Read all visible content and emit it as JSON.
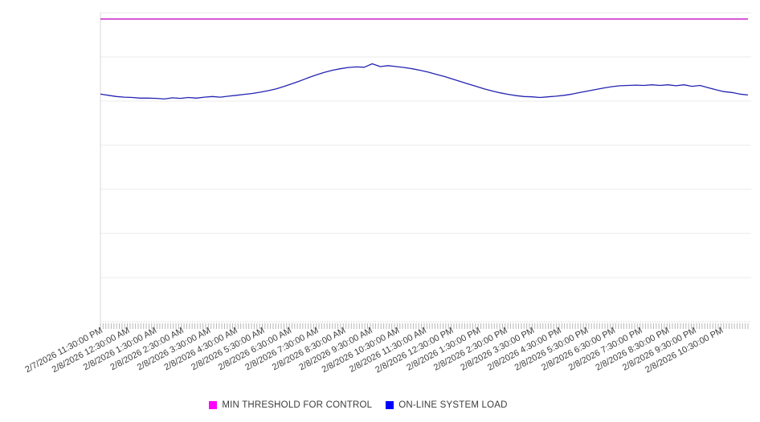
{
  "chart_data": {
    "type": "line",
    "title": "",
    "xlabel": "",
    "ylabel": "",
    "ylim": [
      0,
      100
    ],
    "y_divisions": 7,
    "y_axis_labels_visible": false,
    "grid": "horizontal",
    "legend_position": "bottom",
    "x_minor_tick_count": 240,
    "x_labels": [
      "2/7/2026 11:30:00 PM",
      "2/8/2026 12:30:00 AM",
      "2/8/2026 1:30:00 AM",
      "2/8/2026 2:30:00 AM",
      "2/8/2026 3:30:00 AM",
      "2/8/2026 4:30:00 AM",
      "2/8/2026 5:30:00 AM",
      "2/8/2026 6:30:00 AM",
      "2/8/2026 7:30:00 AM",
      "2/8/2026 8:30:00 AM",
      "2/8/2026 9:30:00 AM",
      "2/8/2026 10:30:00 AM",
      "2/8/2026 11:30:00 AM",
      "2/8/2026 12:30:00 PM",
      "2/8/2026 1:30:00 PM",
      "2/8/2026 2:30:00 PM",
      "2/8/2026 3:30:00 PM",
      "2/8/2026 4:30:00 PM",
      "2/8/2026 5:30:00 PM",
      "2/8/2026 6:30:00 PM",
      "2/8/2026 7:30:00 PM",
      "2/8/2026 8:30:00 PM",
      "2/8/2026 9:30:00 PM",
      "2/8/2026 10:30:00 PM"
    ],
    "series": [
      {
        "name": "MIN THRESHOLD FOR CONTROL",
        "type": "constant-threshold",
        "value": 98,
        "legend_color": "#FF00FF",
        "line_color": "#C929C9"
      },
      {
        "name": "ON-LINE SYSTEM LOAD",
        "type": "line",
        "legend_color": "#0000FF",
        "line_color": "#2323B2",
        "values": [
          73.7,
          73.3,
          72.9,
          72.7,
          72.6,
          72.4,
          72.4,
          72.3,
          72.1,
          72.5,
          72.3,
          72.6,
          72.4,
          72.7,
          72.9,
          72.7,
          73.0,
          73.3,
          73.6,
          73.9,
          74.3,
          74.8,
          75.4,
          76.2,
          77.1,
          78.0,
          79.0,
          79.9,
          80.7,
          81.4,
          81.9,
          82.3,
          82.5,
          82.4,
          83.5,
          82.6,
          82.9,
          82.6,
          82.3,
          81.9,
          81.4,
          80.8,
          80.1,
          79.4,
          78.6,
          77.8,
          77.0,
          76.2,
          75.4,
          74.7,
          74.1,
          73.6,
          73.2,
          72.9,
          72.8,
          72.6,
          72.8,
          73.0,
          73.3,
          73.7,
          74.2,
          74.7,
          75.2,
          75.7,
          76.1,
          76.4,
          76.5,
          76.6,
          76.5,
          76.7,
          76.5,
          76.7,
          76.4,
          76.7,
          76.2,
          76.5,
          75.8,
          75.1,
          74.5,
          74.2,
          73.7,
          73.4
        ]
      }
    ],
    "colors": {
      "background": "#FFFFFF",
      "grid": "#EBEBEB",
      "spine": "#D8D8D8",
      "axis_dots": "#C9C9C9",
      "ticks": "#B8B8B8",
      "label_text": "#3D3D3D",
      "legend_text": "#3C3C3C"
    }
  }
}
